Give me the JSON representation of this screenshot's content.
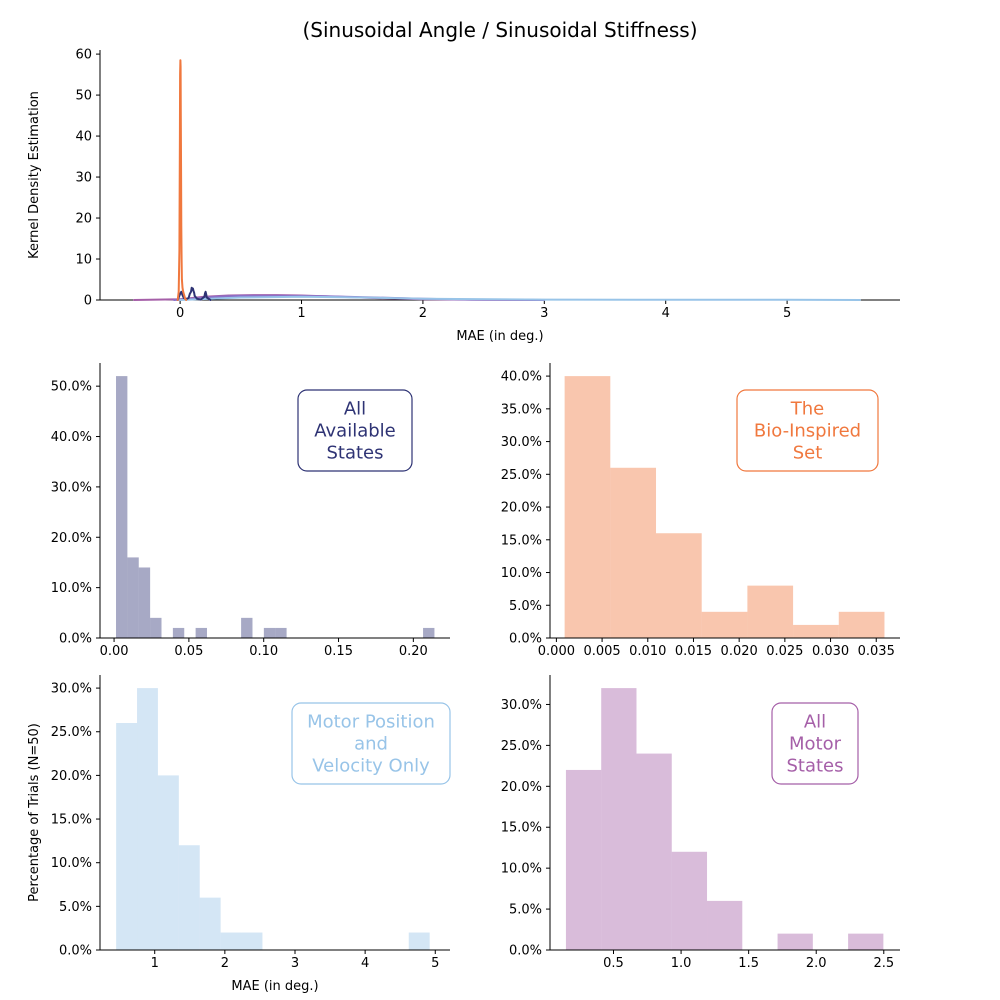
{
  "figure_title": "(Sinusoidal Angle / Sinusoidal Stiffness)",
  "colors": {
    "all_states": "#2e3374",
    "bio_inspired": "#f0783e",
    "motor_pos_vel": "#98c4e8",
    "all_motor": "#a55fa8",
    "kde_extra": "#8a70c8"
  },
  "chart_data": [
    {
      "type": "line",
      "panel": "kde",
      "title": "",
      "xlabel": "MAE (in deg.)",
      "ylabel": "Kernel Density Estimation",
      "xlim": [
        -0.66,
        5.93
      ],
      "ylim": [
        0,
        61
      ],
      "xticks": [
        0,
        1,
        2,
        3,
        4,
        5
      ],
      "yticks": [
        0,
        10,
        20,
        30,
        40,
        50,
        60
      ],
      "grid": false,
      "series": [
        {
          "color_key": "all_motor",
          "x": [
            -0.38,
            0,
            0.2,
            0.4,
            0.6,
            0.8,
            1.0,
            1.3,
            1.6,
            2.0,
            2.5,
            3.0
          ],
          "y": [
            0,
            0.2,
            0.8,
            1.1,
            1.2,
            1.2,
            1.1,
            0.8,
            0.5,
            0.2,
            0.05,
            0
          ]
        },
        {
          "color_key": "kde_extra",
          "x": [
            -0.05,
            0.1,
            0.3,
            0.5,
            0.8,
            1.2,
            1.6,
            2.0,
            2.4,
            3.0
          ],
          "y": [
            0,
            0.3,
            0.8,
            1.0,
            1.0,
            0.9,
            0.6,
            0.3,
            0.1,
            0
          ]
        },
        {
          "color_key": "motor_pos_vel",
          "x": [
            0,
            0.5,
            1.0,
            1.5,
            2.0,
            3.0,
            4.0,
            5.0,
            5.6
          ],
          "y": [
            0,
            0.6,
            0.8,
            0.6,
            0.3,
            0.1,
            0.05,
            0.08,
            0
          ]
        },
        {
          "color_key": "all_states",
          "x": [
            -0.02,
            0.0,
            0.01,
            0.02,
            0.03,
            0.05,
            0.07,
            0.08,
            0.09,
            0.095,
            0.1,
            0.105,
            0.11,
            0.115,
            0.12,
            0.14,
            0.17,
            0.2,
            0.205,
            0.21,
            0.215,
            0.22,
            0.25
          ],
          "y": [
            0,
            1.5,
            2.0,
            1.2,
            0.5,
            0.2,
            0.5,
            1.5,
            2.0,
            3.0,
            2.5,
            2.8,
            2.2,
            1.8,
            1.0,
            0.3,
            0.1,
            0.8,
            1.6,
            2.0,
            1.4,
            0.6,
            0
          ]
        },
        {
          "color_key": "bio_inspired",
          "x": [
            -0.02,
            -0.012,
            -0.006,
            -0.002,
            0.0,
            0.002,
            0.004,
            0.006,
            0.008,
            0.01,
            0.012,
            0.015,
            0.02,
            0.025,
            0.03,
            0.035,
            0.04,
            0.05
          ],
          "y": [
            0,
            2,
            12,
            40,
            55,
            58.5,
            57,
            45,
            30,
            18,
            10,
            5,
            3,
            2,
            1.5,
            1,
            0.4,
            0
          ]
        }
      ]
    },
    {
      "type": "bar",
      "panel": "hist_all_states",
      "label": "All\nAvailable\nStates",
      "color_key": "all_states",
      "xlabel": "",
      "ylabel": "",
      "xlim": [
        -0.0094,
        0.2245
      ],
      "ylim": [
        0,
        54.6
      ],
      "xticks": [
        0.0,
        0.05,
        0.1,
        0.15,
        0.2
      ],
      "xtick_labels": [
        "0.00",
        "0.05",
        "0.10",
        "0.15",
        "0.20"
      ],
      "yticks": [
        0,
        10,
        20,
        30,
        40,
        50
      ],
      "ytick_labels": [
        "0.0%",
        "10.0%",
        "20.0%",
        "30.0%",
        "40.0%",
        "50.0%"
      ],
      "bin_edges": [
        0.0013,
        0.0089,
        0.0165,
        0.0241,
        0.0317,
        0.0393,
        0.0469,
        0.0545,
        0.0621,
        0.0697,
        0.0773,
        0.0849,
        0.0925,
        0.1001,
        0.1077,
        0.1153,
        0.1229,
        0.1305,
        0.1381,
        0.1457,
        0.1533,
        0.1609,
        0.1685,
        0.1761,
        0.1837,
        0.1913,
        0.1989,
        0.2065,
        0.2141
      ],
      "values": [
        52,
        16,
        14,
        4,
        0,
        2,
        0,
        2,
        0,
        0,
        0,
        4,
        0,
        2,
        2,
        0,
        0,
        0,
        0,
        0,
        0,
        0,
        0,
        0,
        0,
        0,
        0,
        2
      ]
    },
    {
      "type": "bar",
      "panel": "hist_bio_inspired",
      "label": "The\nBio-Inspired\nSet",
      "color_key": "bio_inspired",
      "xlabel": "",
      "ylabel": "",
      "xlim": [
        -0.0007,
        0.0376
      ],
      "ylim": [
        0,
        42
      ],
      "xticks": [
        0.0,
        0.005,
        0.01,
        0.015,
        0.02,
        0.025,
        0.03,
        0.035
      ],
      "xtick_labels": [
        "0.000",
        "0.005",
        "0.010",
        "0.015",
        "0.020",
        "0.025",
        "0.030",
        "0.035"
      ],
      "yticks": [
        0,
        5,
        10,
        15,
        20,
        25,
        30,
        35,
        40
      ],
      "ytick_labels": [
        "0.0%",
        "5.0%",
        "10.0%",
        "15.0%",
        "20.0%",
        "25.0%",
        "30.0%",
        "35.0%",
        "40.0%"
      ],
      "bin_edges": [
        0.0009,
        0.0059,
        0.0109,
        0.0159,
        0.0209,
        0.0259,
        0.0309,
        0.0359
      ],
      "values": [
        40,
        26,
        16,
        4,
        8,
        2,
        4
      ]
    },
    {
      "type": "bar",
      "panel": "hist_motor_pos_vel",
      "label": "Motor Position\nand\nVelocity Only",
      "color_key": "motor_pos_vel",
      "xlabel": "MAE (in deg.)",
      "ylabel": "Percentage of Trials (N=50)",
      "xlim": [
        0.22,
        5.21
      ],
      "ylim": [
        0,
        31.5
      ],
      "xticks": [
        1,
        2,
        3,
        4,
        5
      ],
      "xtick_labels": [
        "1",
        "2",
        "3",
        "4",
        "5"
      ],
      "yticks": [
        0,
        5,
        10,
        15,
        20,
        25,
        30
      ],
      "ytick_labels": [
        "0.0%",
        "5.0%",
        "10.0%",
        "15.0%",
        "20.0%",
        "25.0%",
        "30.0%"
      ],
      "bin_edges": [
        0.45,
        0.748,
        1.046,
        1.344,
        1.642,
        1.94,
        2.238,
        2.536,
        2.834,
        3.132,
        3.43,
        3.728,
        4.026,
        4.324,
        4.622,
        4.92
      ],
      "values": [
        26,
        30,
        20,
        12,
        6,
        2,
        2,
        0,
        0,
        0,
        0,
        0,
        0,
        0,
        2
      ]
    },
    {
      "type": "bar",
      "panel": "hist_all_motor",
      "label": "All\nMotor\nStates",
      "color_key": "all_motor",
      "xlabel": "",
      "ylabel": "",
      "xlim": [
        0.03,
        2.62
      ],
      "ylim": [
        0,
        33.6
      ],
      "xticks": [
        0.5,
        1.0,
        1.5,
        2.0,
        2.5
      ],
      "xtick_labels": [
        "0.5",
        "1.0",
        "1.5",
        "2.0",
        "2.5"
      ],
      "yticks": [
        0,
        5,
        10,
        15,
        20,
        25,
        30
      ],
      "ytick_labels": [
        "0.0%",
        "5.0%",
        "10.0%",
        "15.0%",
        "20.0%",
        "25.0%",
        "30.0%"
      ],
      "bin_edges": [
        0.148,
        0.409,
        0.67,
        0.931,
        1.192,
        1.453,
        1.714,
        1.975,
        2.236,
        2.497
      ],
      "values": [
        22,
        32,
        24,
        12,
        6,
        0,
        2,
        0,
        2
      ]
    }
  ],
  "kde_xtick_labels": [
    "0",
    "1",
    "2",
    "3",
    "4",
    "5"
  ],
  "kde_ytick_labels": [
    "0",
    "10",
    "20",
    "30",
    "40",
    "50",
    "60"
  ]
}
